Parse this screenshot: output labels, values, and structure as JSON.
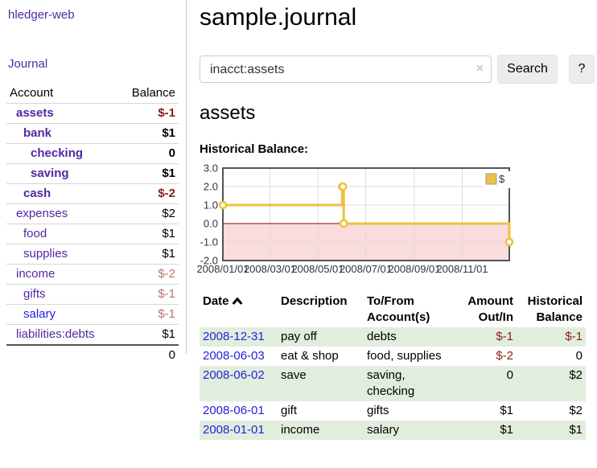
{
  "app": {
    "brand": "hledger-web"
  },
  "sidebar": {
    "journal_link": "Journal",
    "accounts_table": {
      "header_account": "Account",
      "header_balance": "Balance",
      "rows": [
        {
          "name": "assets",
          "depth": 1,
          "balance": "$-1",
          "bold": true,
          "neg": "strong"
        },
        {
          "name": "bank",
          "depth": 2,
          "balance": "$1",
          "bold": true
        },
        {
          "name": "checking",
          "depth": 3,
          "balance": "0",
          "bold": true
        },
        {
          "name": "saving",
          "depth": 3,
          "balance": "$1",
          "bold": true
        },
        {
          "name": "cash",
          "depth": 2,
          "balance": "$-2",
          "bold": true,
          "neg": "strong"
        },
        {
          "name": "expenses",
          "depth": 1,
          "balance": "$2"
        },
        {
          "name": "food",
          "depth": 2,
          "balance": "$1"
        },
        {
          "name": "supplies",
          "depth": 2,
          "balance": "$1"
        },
        {
          "name": "income",
          "depth": 1,
          "balance": "$-2",
          "neg": "muted"
        },
        {
          "name": "gifts",
          "depth": 2,
          "balance": "$-1",
          "neg": "muted"
        },
        {
          "name": "salary",
          "depth": 2,
          "balance": "$-1",
          "neg": "muted",
          "link": "blue"
        },
        {
          "name": "liabilities:debts",
          "depth": 1,
          "balance": "$1"
        }
      ],
      "total": "0"
    }
  },
  "main": {
    "title": "sample.journal",
    "search": {
      "value": "inacct:assets",
      "clear_icon": "×",
      "button_label": "Search",
      "help_label": "?"
    },
    "account_heading": "assets",
    "chart_label": "Historical Balance:",
    "register": {
      "headers": {
        "date": "Date",
        "description": "Description",
        "accounts": "To/From Account(s)",
        "amount": "Amount Out/In",
        "balance": "Historical Balance"
      },
      "rows": [
        {
          "date": "2008-12-31",
          "description": "pay off",
          "accounts": "debts",
          "amount": "$-1",
          "balance": "$-1"
        },
        {
          "date": "2008-06-03",
          "description": "eat & shop",
          "accounts": "food, supplies",
          "amount": "$-2",
          "balance": "0"
        },
        {
          "date": "2008-06-02",
          "description": "save",
          "accounts": "saving, checking",
          "amount": "0",
          "balance": "$2"
        },
        {
          "date": "2008-06-01",
          "description": "gift",
          "accounts": "gifts",
          "amount": "$1",
          "balance": "$2"
        },
        {
          "date": "2008-01-01",
          "description": "income",
          "accounts": "salary",
          "amount": "$1",
          "balance": "$1"
        }
      ]
    }
  },
  "chart_data": {
    "type": "line",
    "title": "Historical Balance:",
    "step": true,
    "legend": {
      "label": "$",
      "position": "top-right"
    },
    "x_range": [
      "2008-01-01",
      "2008-12-31"
    ],
    "ylim": [
      -2,
      3
    ],
    "grid": true,
    "series": [
      {
        "name": "$",
        "points": [
          {
            "t": "2008-01-01",
            "v": 1
          },
          {
            "t": "2008-06-01",
            "v": 2
          },
          {
            "t": "2008-06-02",
            "v": 2
          },
          {
            "t": "2008-06-03",
            "v": 0
          },
          {
            "t": "2008-12-31",
            "v": -1
          }
        ]
      }
    ],
    "x_ticks": [
      {
        "t": "2008-01-01",
        "label": "2008/01/01"
      },
      {
        "t": "2008-03-01",
        "label": "2008/03/01"
      },
      {
        "t": "2008-05-01",
        "label": "2008/05/01"
      },
      {
        "t": "2008-07-01",
        "label": "2008/07/01"
      },
      {
        "t": "2008-09-01",
        "label": "2008/09/01"
      },
      {
        "t": "2008-11-01",
        "label": "2008/11/01"
      }
    ],
    "y_ticks": [
      {
        "v": 3,
        "label": "3.0"
      },
      {
        "v": 2,
        "label": "2.0"
      },
      {
        "v": 1,
        "label": "1.0"
      },
      {
        "v": 0,
        "label": "0.0"
      },
      {
        "v": -1,
        "label": "-1.0"
      },
      {
        "v": -2,
        "label": "-2.0"
      }
    ],
    "colors": {
      "series": "#edc240",
      "negative_region": "#fadcdc",
      "zero_line": "#8b0000",
      "grid": "#dcdcdc",
      "border": "#545454"
    }
  }
}
